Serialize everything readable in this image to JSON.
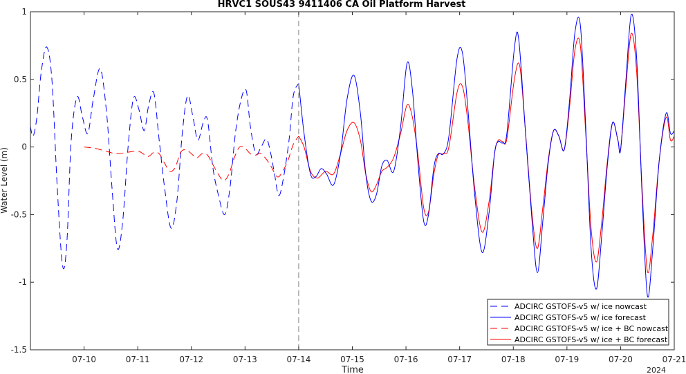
{
  "chart_data": {
    "type": "line",
    "title": "HRVC1 SOUS43 9411406 CA Oil Platform Harvest",
    "xlabel": "Time",
    "ylabel": "Water Level (m)",
    "x_unit": "day of July 2024",
    "xlim": [
      9.0,
      21.0
    ],
    "ylim": [
      -1.5,
      1.0
    ],
    "x_ticks": [
      10,
      11,
      12,
      13,
      14,
      15,
      16,
      17,
      18,
      19,
      20,
      21
    ],
    "x_tick_labels": [
      "07-10",
      "07-11",
      "07-12",
      "07-13",
      "07-14",
      "07-15",
      "07-16",
      "07-17",
      "07-18",
      "07-19",
      "07-20",
      "07-21"
    ],
    "y_ticks": [
      -1.5,
      -1,
      -0.5,
      0,
      0.5,
      1
    ],
    "y_tick_labels": [
      "-1.5",
      "-1",
      "-0.5",
      "0",
      "0.5",
      "1"
    ],
    "year_label": "2024",
    "grid": false,
    "nowcast_forecast_divider_x": 14.0,
    "legend_position": "bottom-right",
    "series": [
      {
        "name": "ADCIRC GSTOFS-v5 w/ ice nowcast",
        "color": "#0000ff",
        "dash": "dashed",
        "points": [
          [
            9.0,
            0.15
          ],
          [
            9.05,
            0.08
          ],
          [
            9.12,
            0.22
          ],
          [
            9.2,
            0.55
          ],
          [
            9.3,
            0.74
          ],
          [
            9.4,
            0.5
          ],
          [
            9.5,
            -0.3
          ],
          [
            9.6,
            -0.88
          ],
          [
            9.68,
            -0.7
          ],
          [
            9.76,
            0.05
          ],
          [
            9.87,
            0.37
          ],
          [
            9.97,
            0.22
          ],
          [
            10.07,
            0.1
          ],
          [
            10.17,
            0.35
          ],
          [
            10.3,
            0.58
          ],
          [
            10.42,
            0.25
          ],
          [
            10.52,
            -0.3
          ],
          [
            10.62,
            -0.75
          ],
          [
            10.72,
            -0.55
          ],
          [
            10.82,
            0.0
          ],
          [
            10.92,
            0.36
          ],
          [
            11.02,
            0.28
          ],
          [
            11.12,
            0.12
          ],
          [
            11.2,
            0.3
          ],
          [
            11.3,
            0.4
          ],
          [
            11.4,
            0.05
          ],
          [
            11.5,
            -0.3
          ],
          [
            11.62,
            -0.6
          ],
          [
            11.73,
            -0.4
          ],
          [
            11.83,
            0.1
          ],
          [
            11.93,
            0.38
          ],
          [
            12.03,
            0.22
          ],
          [
            12.12,
            0.05
          ],
          [
            12.22,
            0.18
          ],
          [
            12.3,
            0.2
          ],
          [
            12.4,
            -0.15
          ],
          [
            12.5,
            -0.35
          ],
          [
            12.62,
            -0.5
          ],
          [
            12.72,
            -0.3
          ],
          [
            12.82,
            0.1
          ],
          [
            12.92,
            0.34
          ],
          [
            13.02,
            0.42
          ],
          [
            13.1,
            0.15
          ],
          [
            13.2,
            -0.05
          ],
          [
            13.3,
            0.0
          ],
          [
            13.4,
            0.06
          ],
          [
            13.48,
            -0.05
          ],
          [
            13.55,
            -0.2
          ],
          [
            13.63,
            -0.36
          ],
          [
            13.72,
            -0.22
          ],
          [
            13.82,
            0.05
          ],
          [
            13.9,
            0.38
          ],
          [
            14.0,
            0.47
          ]
        ]
      },
      {
        "name": "ADCIRC GSTOFS-v5 w/ ice forecast",
        "color": "#0000ff",
        "dash": "solid",
        "points": [
          [
            14.0,
            0.47
          ],
          [
            14.1,
            0.1
          ],
          [
            14.22,
            -0.2
          ],
          [
            14.32,
            -0.22
          ],
          [
            14.42,
            -0.16
          ],
          [
            14.52,
            -0.2
          ],
          [
            14.65,
            -0.28
          ],
          [
            14.78,
            -0.05
          ],
          [
            14.9,
            0.35
          ],
          [
            15.03,
            0.53
          ],
          [
            15.15,
            0.25
          ],
          [
            15.25,
            -0.2
          ],
          [
            15.35,
            -0.4
          ],
          [
            15.45,
            -0.35
          ],
          [
            15.55,
            -0.14
          ],
          [
            15.65,
            -0.1
          ],
          [
            15.77,
            -0.18
          ],
          [
            15.9,
            0.15
          ],
          [
            16.02,
            0.62
          ],
          [
            16.12,
            0.42
          ],
          [
            16.22,
            -0.1
          ],
          [
            16.33,
            -0.55
          ],
          [
            16.42,
            -0.5
          ],
          [
            16.52,
            -0.15
          ],
          [
            16.6,
            -0.05
          ],
          [
            16.7,
            -0.05
          ],
          [
            16.8,
            0.08
          ],
          [
            16.95,
            0.65
          ],
          [
            17.05,
            0.7
          ],
          [
            17.15,
            0.3
          ],
          [
            17.28,
            -0.35
          ],
          [
            17.42,
            -0.78
          ],
          [
            17.55,
            -0.48
          ],
          [
            17.65,
            -0.05
          ],
          [
            17.72,
            0.04
          ],
          [
            17.8,
            0.03
          ],
          [
            17.88,
            0.1
          ],
          [
            18.02,
            0.73
          ],
          [
            18.1,
            0.8
          ],
          [
            18.22,
            0.15
          ],
          [
            18.35,
            -0.55
          ],
          [
            18.45,
            -0.93
          ],
          [
            18.55,
            -0.55
          ],
          [
            18.65,
            -0.12
          ],
          [
            18.75,
            0.12
          ],
          [
            18.85,
            0.08
          ],
          [
            18.95,
            -0.02
          ],
          [
            19.05,
            0.35
          ],
          [
            19.15,
            0.85
          ],
          [
            19.25,
            0.9
          ],
          [
            19.35,
            0.15
          ],
          [
            19.45,
            -0.75
          ],
          [
            19.55,
            -1.05
          ],
          [
            19.65,
            -0.65
          ],
          [
            19.75,
            -0.15
          ],
          [
            19.85,
            0.18
          ],
          [
            19.95,
            0.05
          ],
          [
            20.0,
            -0.02
          ],
          [
            20.1,
            0.5
          ],
          [
            20.2,
            0.98
          ],
          [
            20.3,
            0.65
          ],
          [
            20.4,
            -0.35
          ],
          [
            20.5,
            -1.1
          ],
          [
            20.6,
            -0.75
          ],
          [
            20.72,
            -0.1
          ],
          [
            20.85,
            0.25
          ],
          [
            20.93,
            0.1
          ],
          [
            21.0,
            0.12
          ]
        ]
      },
      {
        "name": "ADCIRC GSTOFS-v5 w/ ice + BC nowcast",
        "color": "#ff0000",
        "dash": "dashed",
        "points": [
          [
            10.0,
            0.0
          ],
          [
            10.2,
            -0.01
          ],
          [
            10.4,
            -0.03
          ],
          [
            10.6,
            -0.05
          ],
          [
            10.8,
            -0.04
          ],
          [
            11.0,
            -0.03
          ],
          [
            11.1,
            -0.05
          ],
          [
            11.2,
            -0.07
          ],
          [
            11.3,
            -0.04
          ],
          [
            11.4,
            -0.05
          ],
          [
            11.5,
            -0.12
          ],
          [
            11.6,
            -0.18
          ],
          [
            11.7,
            -0.15
          ],
          [
            11.8,
            -0.04
          ],
          [
            11.9,
            -0.02
          ],
          [
            12.0,
            -0.05
          ],
          [
            12.1,
            -0.08
          ],
          [
            12.2,
            -0.05
          ],
          [
            12.3,
            -0.06
          ],
          [
            12.4,
            -0.13
          ],
          [
            12.5,
            -0.2
          ],
          [
            12.6,
            -0.25
          ],
          [
            12.7,
            -0.2
          ],
          [
            12.8,
            -0.08
          ],
          [
            12.9,
            0.0
          ],
          [
            13.0,
            -0.01
          ],
          [
            13.1,
            -0.05
          ],
          [
            13.2,
            -0.06
          ],
          [
            13.3,
            -0.05
          ],
          [
            13.45,
            -0.12
          ],
          [
            13.6,
            -0.22
          ],
          [
            13.7,
            -0.18
          ],
          [
            13.8,
            -0.1
          ],
          [
            13.9,
            0.02
          ],
          [
            14.0,
            0.08
          ]
        ]
      },
      {
        "name": "ADCIRC GSTOFS-v5 w/ ice + BC forecast",
        "color": "#ff0000",
        "dash": "solid",
        "points": [
          [
            14.0,
            0.08
          ],
          [
            14.1,
            0.0
          ],
          [
            14.22,
            -0.18
          ],
          [
            14.35,
            -0.23
          ],
          [
            14.5,
            -0.18
          ],
          [
            14.65,
            -0.2
          ],
          [
            14.78,
            -0.05
          ],
          [
            14.9,
            0.12
          ],
          [
            15.03,
            0.18
          ],
          [
            15.15,
            0.05
          ],
          [
            15.25,
            -0.2
          ],
          [
            15.35,
            -0.33
          ],
          [
            15.45,
            -0.28
          ],
          [
            15.55,
            -0.18
          ],
          [
            15.65,
            -0.15
          ],
          [
            15.77,
            -0.08
          ],
          [
            15.9,
            0.1
          ],
          [
            16.02,
            0.31
          ],
          [
            16.12,
            0.22
          ],
          [
            16.22,
            -0.05
          ],
          [
            16.33,
            -0.45
          ],
          [
            16.42,
            -0.48
          ],
          [
            16.52,
            -0.2
          ],
          [
            16.6,
            -0.06
          ],
          [
            16.7,
            -0.05
          ],
          [
            16.8,
            0.0
          ],
          [
            16.95,
            0.4
          ],
          [
            17.05,
            0.45
          ],
          [
            17.15,
            0.2
          ],
          [
            17.28,
            -0.3
          ],
          [
            17.42,
            -0.63
          ],
          [
            17.55,
            -0.4
          ],
          [
            17.65,
            -0.05
          ],
          [
            17.72,
            0.05
          ],
          [
            17.8,
            0.04
          ],
          [
            17.88,
            0.06
          ],
          [
            18.02,
            0.5
          ],
          [
            18.12,
            0.6
          ],
          [
            18.22,
            0.15
          ],
          [
            18.35,
            -0.5
          ],
          [
            18.45,
            -0.75
          ],
          [
            18.55,
            -0.45
          ],
          [
            18.65,
            -0.1
          ],
          [
            18.75,
            0.12
          ],
          [
            18.85,
            0.08
          ],
          [
            18.95,
            -0.02
          ],
          [
            19.05,
            0.3
          ],
          [
            19.15,
            0.72
          ],
          [
            19.25,
            0.75
          ],
          [
            19.35,
            0.1
          ],
          [
            19.45,
            -0.6
          ],
          [
            19.55,
            -0.85
          ],
          [
            19.65,
            -0.55
          ],
          [
            19.75,
            -0.12
          ],
          [
            19.85,
            0.18
          ],
          [
            19.95,
            0.05
          ],
          [
            20.0,
            -0.02
          ],
          [
            20.1,
            0.45
          ],
          [
            20.2,
            0.84
          ],
          [
            20.3,
            0.55
          ],
          [
            20.4,
            -0.3
          ],
          [
            20.5,
            -0.92
          ],
          [
            20.6,
            -0.65
          ],
          [
            20.72,
            -0.1
          ],
          [
            20.85,
            0.22
          ],
          [
            20.93,
            0.05
          ],
          [
            21.0,
            0.08
          ]
        ]
      }
    ]
  }
}
